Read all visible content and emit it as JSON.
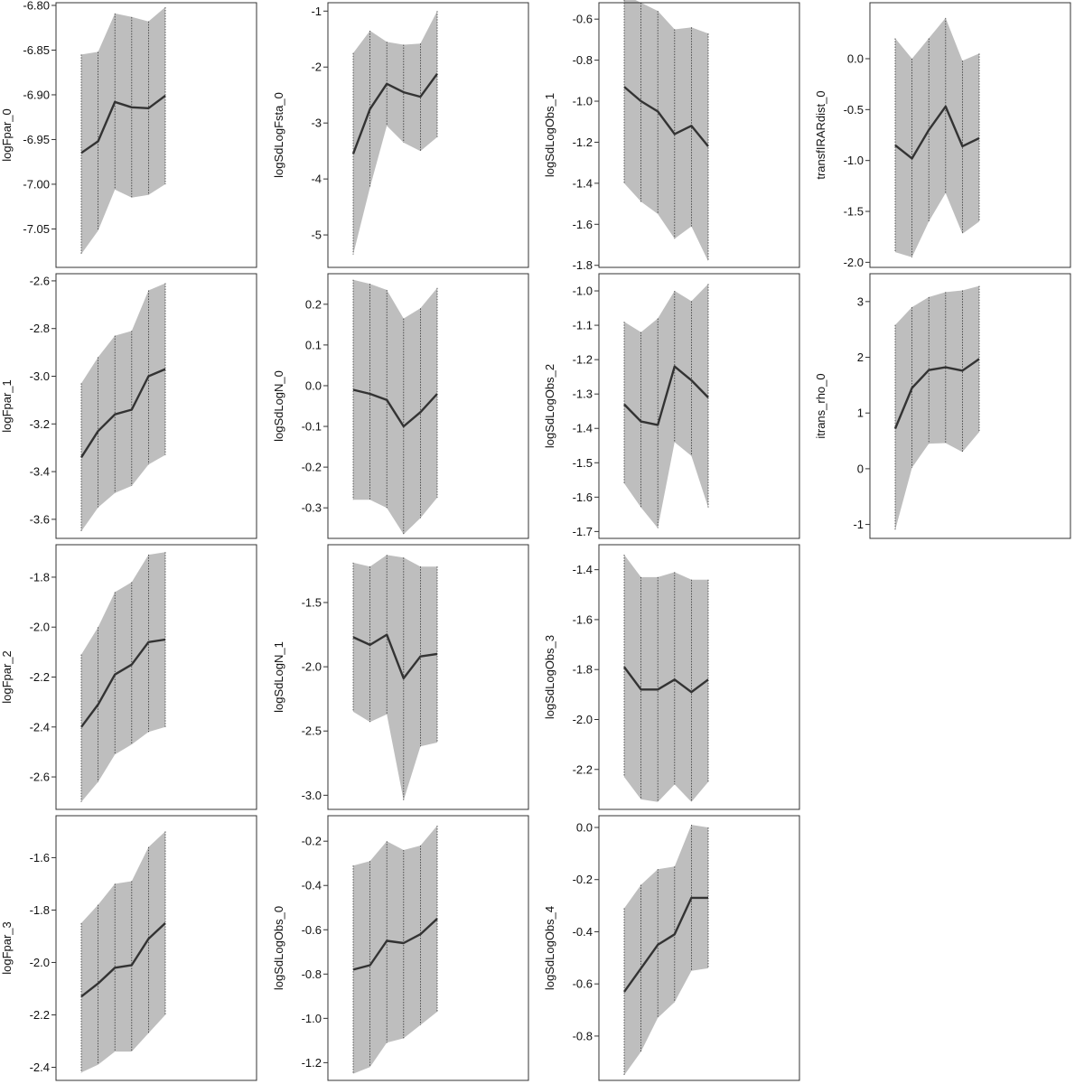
{
  "colors": {
    "band": "#bebebe",
    "line": "#333333",
    "frame": "#333333",
    "dotted": "#333333"
  },
  "chart_data": [
    {
      "type": "area",
      "ylabel": "logFpar_0",
      "yticks": [
        -7.05,
        -7.0,
        -6.95,
        -6.9,
        -6.85,
        -6.8
      ],
      "tick_labels": [
        "-7.05",
        "-7.00",
        "-6.95",
        "-6.90",
        "-6.85",
        "-6.80"
      ],
      "ylim": [
        -7.093,
        -6.797
      ],
      "x": [
        1,
        2,
        3,
        4,
        5,
        6
      ],
      "center": [
        -6.965,
        -6.952,
        -6.908,
        -6.914,
        -6.915,
        -6.901
      ],
      "lower": [
        -7.078,
        -7.052,
        -7.006,
        -7.015,
        -7.012,
        -7.0
      ],
      "upper": [
        -6.855,
        -6.852,
        -6.809,
        -6.813,
        -6.818,
        -6.802
      ]
    },
    {
      "type": "area",
      "ylabel": "logSdLogFsta_0",
      "yticks": [
        -5,
        -4,
        -3,
        -2,
        -1
      ],
      "tick_labels": [
        "-5",
        "-4",
        "-3",
        "-2",
        "-1"
      ],
      "ylim": [
        -5.58,
        -0.85
      ],
      "x": [
        1,
        2,
        3,
        4,
        5,
        6
      ],
      "center": [
        -3.55,
        -2.75,
        -2.3,
        -2.45,
        -2.53,
        -2.12
      ],
      "lower": [
        -5.35,
        -4.15,
        -3.05,
        -3.35,
        -3.5,
        -3.25
      ],
      "upper": [
        -1.75,
        -1.35,
        -1.55,
        -1.6,
        -1.58,
        -1.0
      ]
    },
    {
      "type": "area",
      "ylabel": "logSdLogObs_1",
      "yticks": [
        -1.8,
        -1.6,
        -1.4,
        -1.2,
        -1.0,
        -0.8,
        -0.6
      ],
      "tick_labels": [
        "-1.8",
        "-1.6",
        "-1.4",
        "-1.2",
        "-1.0",
        "-0.8",
        "-0.6"
      ],
      "ylim": [
        -1.81,
        -0.52
      ],
      "x": [
        1,
        2,
        3,
        4,
        5,
        6
      ],
      "center": [
        -0.93,
        -1.0,
        -1.05,
        -1.16,
        -1.12,
        -1.22
      ],
      "lower": [
        -1.4,
        -1.49,
        -1.55,
        -1.67,
        -1.61,
        -1.78
      ],
      "upper": [
        -0.48,
        -0.52,
        -0.56,
        -0.65,
        -0.64,
        -0.67
      ]
    },
    {
      "type": "area",
      "ylabel": "transfIRARdist_0",
      "yticks": [
        -2.0,
        -1.5,
        -1.0,
        -0.5,
        0.0
      ],
      "tick_labels": [
        "-2.0",
        "-1.5",
        "-1.0",
        "-0.5",
        "0.0"
      ],
      "ylim": [
        -2.05,
        0.55
      ],
      "x": [
        1,
        2,
        3,
        4,
        5,
        6
      ],
      "center": [
        -0.85,
        -0.98,
        -0.7,
        -0.47,
        -0.86,
        -0.78
      ],
      "lower": [
        -1.9,
        -1.95,
        -1.6,
        -1.32,
        -1.72,
        -1.6
      ],
      "upper": [
        0.2,
        0.0,
        0.2,
        0.4,
        -0.02,
        0.05
      ]
    },
    {
      "type": "area",
      "ylabel": "logFpar_1",
      "yticks": [
        -3.6,
        -3.4,
        -3.2,
        -3.0,
        -2.8,
        -2.6
      ],
      "tick_labels": [
        "-3.6",
        "-3.4",
        "-3.2",
        "-3.0",
        "-2.8",
        "-2.6"
      ],
      "ylim": [
        -3.68,
        -2.57
      ],
      "x": [
        1,
        2,
        3,
        4,
        5,
        6
      ],
      "center": [
        -3.34,
        -3.23,
        -3.16,
        -3.14,
        -3.0,
        -2.97
      ],
      "lower": [
        -3.65,
        -3.55,
        -3.49,
        -3.46,
        -3.37,
        -3.33
      ],
      "upper": [
        -3.03,
        -2.92,
        -2.83,
        -2.81,
        -2.64,
        -2.61
      ]
    },
    {
      "type": "area",
      "ylabel": "logSdLogN_0",
      "yticks": [
        -0.3,
        -0.2,
        -0.1,
        0.0,
        0.1,
        0.2
      ],
      "tick_labels": [
        "-0.3",
        "-0.2",
        "-0.1",
        "0.0",
        "0.1",
        "0.2"
      ],
      "ylim": [
        -0.375,
        0.275
      ],
      "x": [
        1,
        2,
        3,
        4,
        5,
        6
      ],
      "center": [
        -0.01,
        -0.02,
        -0.035,
        -0.1,
        -0.065,
        -0.02
      ],
      "lower": [
        -0.28,
        -0.28,
        -0.3,
        -0.365,
        -0.325,
        -0.275
      ],
      "upper": [
        0.26,
        0.25,
        0.235,
        0.165,
        0.19,
        0.24
      ]
    },
    {
      "type": "area",
      "ylabel": "logSdLogObs_2",
      "yticks": [
        -1.7,
        -1.6,
        -1.5,
        -1.4,
        -1.3,
        -1.2,
        -1.1,
        -1.0
      ],
      "tick_labels": [
        "-1.7",
        "-1.6",
        "-1.5",
        "-1.4",
        "-1.3",
        "-1.2",
        "-1.1",
        "-1.0"
      ],
      "ylim": [
        -1.72,
        -0.95
      ],
      "x": [
        1,
        2,
        3,
        4,
        5,
        6
      ],
      "center": [
        -1.33,
        -1.38,
        -1.39,
        -1.22,
        -1.26,
        -1.31
      ],
      "lower": [
        -1.56,
        -1.63,
        -1.69,
        -1.44,
        -1.48,
        -1.63
      ],
      "upper": [
        -1.09,
        -1.12,
        -1.08,
        -1.0,
        -1.03,
        -0.98
      ]
    },
    {
      "type": "area",
      "ylabel": "itrans_rho_0",
      "yticks": [
        -1,
        0,
        1,
        2,
        3
      ],
      "tick_labels": [
        "-1",
        "0",
        "1",
        "2",
        "3"
      ],
      "ylim": [
        -1.25,
        3.5
      ],
      "x": [
        1,
        2,
        3,
        4,
        5,
        6
      ],
      "center": [
        0.72,
        1.45,
        1.77,
        1.82,
        1.76,
        1.97
      ],
      "lower": [
        -1.1,
        0.02,
        0.45,
        0.46,
        0.3,
        0.66
      ],
      "upper": [
        2.58,
        2.9,
        3.08,
        3.17,
        3.2,
        3.28
      ]
    },
    {
      "type": "area",
      "ylabel": "logFpar_2",
      "yticks": [
        -2.6,
        -2.4,
        -2.2,
        -2.0,
        -1.8
      ],
      "tick_labels": [
        "-2.6",
        "-2.4",
        "-2.2",
        "-2.0",
        "-1.8"
      ],
      "ylim": [
        -2.73,
        -1.67
      ],
      "x": [
        1,
        2,
        3,
        4,
        5,
        6
      ],
      "center": [
        -2.4,
        -2.31,
        -2.19,
        -2.15,
        -2.06,
        -2.05
      ],
      "lower": [
        -2.7,
        -2.62,
        -2.51,
        -2.47,
        -2.42,
        -2.4
      ],
      "upper": [
        -2.11,
        -2.0,
        -1.86,
        -1.82,
        -1.71,
        -1.7
      ]
    },
    {
      "type": "area",
      "ylabel": "logSdLogN_1",
      "yticks": [
        -3.0,
        -2.5,
        -2.0,
        -1.5
      ],
      "tick_labels": [
        "-3.0",
        "-2.5",
        "-2.0",
        "-1.5"
      ],
      "ylim": [
        -3.11,
        -1.05
      ],
      "x": [
        1,
        2,
        3,
        4,
        5,
        6
      ],
      "center": [
        -1.77,
        -1.83,
        -1.75,
        -2.09,
        -1.92,
        -1.9
      ],
      "lower": [
        -2.35,
        -2.43,
        -2.37,
        -3.04,
        -2.62,
        -2.59
      ],
      "upper": [
        -1.19,
        -1.22,
        -1.13,
        -1.15,
        -1.22,
        -1.22
      ]
    },
    {
      "type": "area",
      "ylabel": "logSdLogObs_3",
      "yticks": [
        -2.2,
        -2.0,
        -1.8,
        -1.6,
        -1.4
      ],
      "tick_labels": [
        "-2.2",
        "-2.0",
        "-1.8",
        "-1.6",
        "-1.4"
      ],
      "ylim": [
        -2.36,
        -1.3
      ],
      "x": [
        1,
        2,
        3,
        4,
        5,
        6
      ],
      "center": [
        -1.79,
        -1.88,
        -1.88,
        -1.84,
        -1.89,
        -1.84
      ],
      "lower": [
        -2.23,
        -2.32,
        -2.33,
        -2.26,
        -2.33,
        -2.25
      ],
      "upper": [
        -1.34,
        -1.43,
        -1.43,
        -1.41,
        -1.44,
        -1.44
      ]
    },
    {
      "type": "area",
      "ylabel": "logFpar_3",
      "yticks": [
        -2.4,
        -2.2,
        -2.0,
        -1.8,
        -1.6
      ],
      "tick_labels": [
        "-2.4",
        "-2.2",
        "-2.0",
        "-1.8",
        "-1.6"
      ],
      "ylim": [
        -2.45,
        -1.44
      ],
      "x": [
        1,
        2,
        3,
        4,
        5,
        6
      ],
      "center": [
        -2.13,
        -2.08,
        -2.02,
        -2.01,
        -1.91,
        -1.85
      ],
      "lower": [
        -2.42,
        -2.39,
        -2.34,
        -2.34,
        -2.27,
        -2.2
      ],
      "upper": [
        -1.85,
        -1.78,
        -1.7,
        -1.69,
        -1.56,
        -1.5
      ]
    },
    {
      "type": "area",
      "ylabel": "logSdLogObs_0",
      "yticks": [
        -1.2,
        -1.0,
        -0.8,
        -0.6,
        -0.4,
        -0.2
      ],
      "tick_labels": [
        "-1.2",
        "-1.0",
        "-0.8",
        "-0.6",
        "-0.4",
        "-0.2"
      ],
      "ylim": [
        -1.28,
        -0.085
      ],
      "x": [
        1,
        2,
        3,
        4,
        5,
        6
      ],
      "center": [
        -0.78,
        -0.76,
        -0.65,
        -0.66,
        -0.62,
        -0.55
      ],
      "lower": [
        -1.25,
        -1.22,
        -1.11,
        -1.09,
        -1.03,
        -0.97
      ],
      "upper": [
        -0.31,
        -0.29,
        -0.2,
        -0.24,
        -0.22,
        -0.13
      ]
    },
    {
      "type": "area",
      "ylabel": "logSdLogObs_4",
      "yticks": [
        -0.8,
        -0.6,
        -0.4,
        -0.2,
        0.0
      ],
      "tick_labels": [
        "-0.8",
        "-0.6",
        "-0.4",
        "-0.2",
        "0.0"
      ],
      "ylim": [
        -0.97,
        0.045
      ],
      "x": [
        1,
        2,
        3,
        4,
        5,
        6
      ],
      "center": [
        -0.63,
        -0.54,
        -0.45,
        -0.41,
        -0.27,
        -0.27
      ],
      "lower": [
        -0.95,
        -0.86,
        -0.73,
        -0.67,
        -0.55,
        -0.54
      ],
      "upper": [
        -0.31,
        -0.22,
        -0.16,
        -0.15,
        0.01,
        0.0
      ]
    }
  ]
}
